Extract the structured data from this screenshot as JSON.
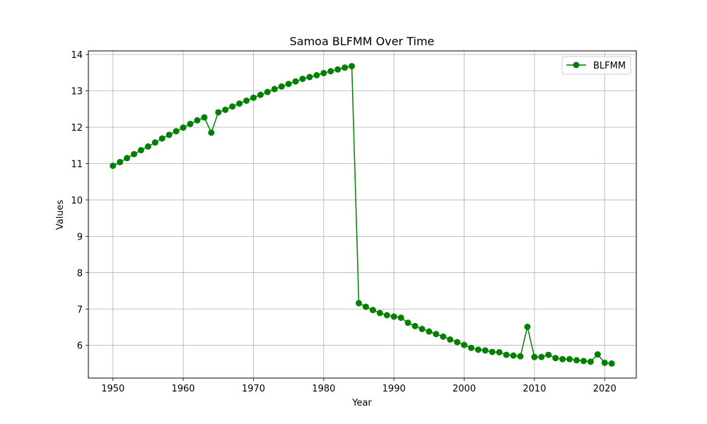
{
  "chart_data": {
    "type": "line",
    "title": "Samoa BLFMM Over Time",
    "xlabel": "Year",
    "ylabel": "Values",
    "xlim": [
      1946.5,
      2024.5
    ],
    "ylim": [
      5.1,
      14.1
    ],
    "xticks": [
      1950,
      1960,
      1970,
      1980,
      1990,
      2000,
      2010,
      2020
    ],
    "yticks": [
      6,
      7,
      8,
      9,
      10,
      11,
      12,
      13,
      14
    ],
    "grid": true,
    "legend_position": "top-right",
    "series": [
      {
        "name": "BLFMM",
        "color": "#008000",
        "marker": "circle",
        "x": [
          1950,
          1951,
          1952,
          1953,
          1954,
          1955,
          1956,
          1957,
          1958,
          1959,
          1960,
          1961,
          1962,
          1963,
          1964,
          1965,
          1966,
          1967,
          1968,
          1969,
          1970,
          1971,
          1972,
          1973,
          1974,
          1975,
          1976,
          1977,
          1978,
          1979,
          1980,
          1981,
          1982,
          1983,
          1984,
          1985,
          1986,
          1987,
          1988,
          1989,
          1990,
          1991,
          1992,
          1993,
          1994,
          1995,
          1996,
          1997,
          1998,
          1999,
          2000,
          2001,
          2002,
          2003,
          2004,
          2005,
          2006,
          2007,
          2008,
          2009,
          2010,
          2011,
          2012,
          2013,
          2014,
          2015,
          2016,
          2017,
          2018,
          2019,
          2020,
          2021
        ],
        "values": [
          10.94,
          11.04,
          11.15,
          11.26,
          11.37,
          11.47,
          11.58,
          11.69,
          11.79,
          11.89,
          11.99,
          12.09,
          12.19,
          12.27,
          11.85,
          12.41,
          12.48,
          12.57,
          12.65,
          12.73,
          12.81,
          12.89,
          12.97,
          13.05,
          13.12,
          13.19,
          13.26,
          13.33,
          13.38,
          13.43,
          13.49,
          13.54,
          13.59,
          13.64,
          13.68,
          7.16,
          7.06,
          6.97,
          6.89,
          6.83,
          6.79,
          6.76,
          6.62,
          6.53,
          6.45,
          6.38,
          6.31,
          6.24,
          6.16,
          6.09,
          6.01,
          5.93,
          5.88,
          5.86,
          5.82,
          5.81,
          5.74,
          5.72,
          5.7,
          6.51,
          5.68,
          5.68,
          5.74,
          5.65,
          5.62,
          5.62,
          5.59,
          5.57,
          5.55,
          5.75,
          5.52,
          5.5
        ]
      }
    ]
  }
}
